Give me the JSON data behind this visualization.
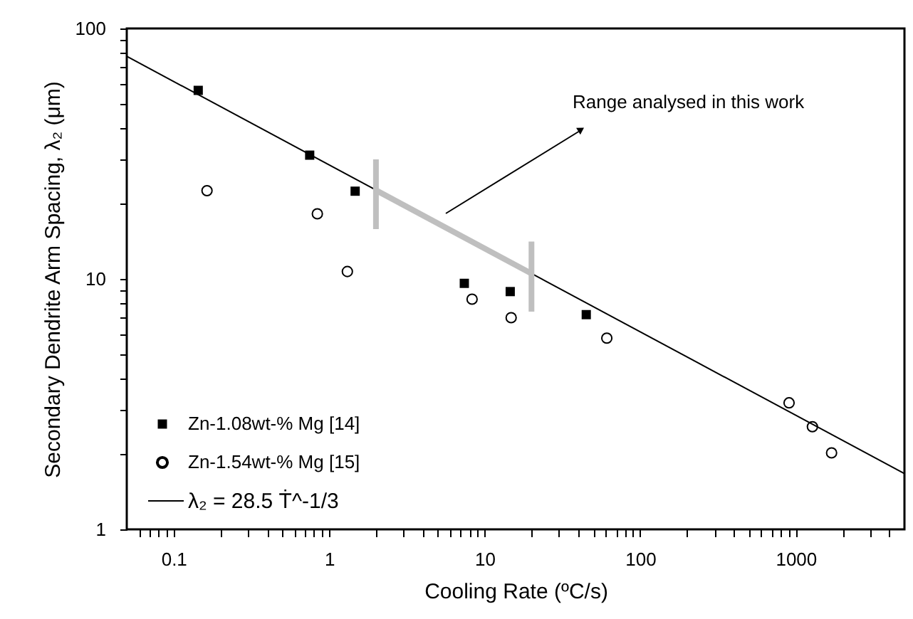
{
  "chart_data": {
    "type": "scatter",
    "xlabel": "Cooling Rate (ºC/s)",
    "ylabel": "Secondary Dendrite Arm Spacing, λ₂ (μm)",
    "log": "xy",
    "grid": false,
    "legend": "bottom left",
    "xlim": [
      0.05,
      5000
    ],
    "ylim": [
      1,
      100
    ],
    "xticks": [
      {
        "value": 0.06,
        "label": null
      },
      {
        "value": 0.07,
        "label": null
      },
      {
        "value": 0.08,
        "label": null
      },
      {
        "value": 0.09,
        "label": null
      },
      0.1,
      {
        "value": 0.2,
        "label": null
      },
      {
        "value": 0.3,
        "label": null
      },
      {
        "value": 0.4,
        "label": null
      },
      {
        "value": 0.5,
        "label": null
      },
      {
        "value": 0.6,
        "label": null
      },
      {
        "value": 0.7,
        "label": null
      },
      {
        "value": 0.8,
        "label": null
      },
      {
        "value": 0.9,
        "label": null
      },
      1,
      {
        "value": 2,
        "label": null
      },
      {
        "value": 3,
        "label": null
      },
      {
        "value": 4,
        "label": null
      },
      {
        "value": 5,
        "label": null
      },
      {
        "value": 6,
        "label": null
      },
      {
        "value": 7,
        "label": null
      },
      {
        "value": 8,
        "label": null
      },
      {
        "value": 9,
        "label": null
      },
      10,
      {
        "value": 20,
        "label": null
      },
      {
        "value": 30,
        "label": null
      },
      {
        "value": 40,
        "label": null
      },
      {
        "value": 50,
        "label": null
      },
      {
        "value": 60,
        "label": null
      },
      {
        "value": 70,
        "label": null
      },
      {
        "value": 80,
        "label": null
      },
      {
        "value": 90,
        "label": null
      },
      100,
      {
        "value": 200,
        "label": null
      },
      {
        "value": 300,
        "label": null
      },
      {
        "value": 400,
        "label": null
      },
      {
        "value": 500,
        "label": null
      },
      {
        "value": 600,
        "label": null
      },
      {
        "value": 700,
        "label": null
      },
      {
        "value": 800,
        "label": null
      },
      {
        "value": 900,
        "label": null
      },
      1000,
      {
        "value": 2000,
        "label": null
      },
      {
        "value": 3000,
        "label": null
      },
      {
        "value": 4000,
        "label": null
      }
    ],
    "yticks": [
      1,
      {
        "value": 2,
        "label": null
      },
      {
        "value": 3,
        "label": null
      },
      {
        "value": 4,
        "label": null
      },
      {
        "value": 5,
        "label": null
      },
      {
        "value": 6,
        "label": null
      },
      {
        "value": 7,
        "label": null
      },
      {
        "value": 8,
        "label": null
      },
      {
        "value": 9,
        "label": null
      },
      10,
      {
        "value": 20,
        "label": null
      },
      {
        "value": 30,
        "label": null
      },
      {
        "value": 40,
        "label": null
      },
      {
        "value": 50,
        "label": null
      },
      {
        "value": 60,
        "label": null
      },
      {
        "value": 70,
        "label": null
      },
      {
        "value": 80,
        "label": null
      },
      {
        "value": 90,
        "label": null
      },
      100
    ],
    "annotations": [
      "Range analysed in this work"
    ],
    "series": [
      {
        "name": "Zn-1.08wt-% Mg [14]",
        "marker": "square",
        "color": "#000000",
        "x": [
          0.144,
          0.75,
          1.47,
          7.4,
          14.6,
          45
        ],
        "values": [
          56.6,
          31.2,
          22.4,
          9.6,
          8.9,
          7.2
        ]
      },
      {
        "name": "Zn-1.54wt-% Mg [15]",
        "marker": "circle",
        "color": "#000000",
        "x": [
          0.164,
          0.84,
          1.31,
          8.3,
          14.8,
          61,
          906,
          1280,
          1700
        ],
        "values": [
          22.5,
          18.2,
          10.7,
          8.3,
          7.0,
          5.8,
          3.2,
          2.57,
          2.02
        ]
      },
      {
        "name": "λ₂ = 28.5 Ṫ^-1/3",
        "type": "line",
        "color": "#000000",
        "x": [
          0.05,
          5000
        ],
        "values": [
          77.4,
          1.67
        ]
      },
      {
        "type": "line",
        "color": "#bfbfbf",
        "x": [
          2,
          20
        ],
        "values": [
          22.6,
          10.5
        ],
        "errors": [
          [
            15.8,
            30
          ],
          [
            7.4,
            14.1
          ]
        ]
      }
    ]
  }
}
